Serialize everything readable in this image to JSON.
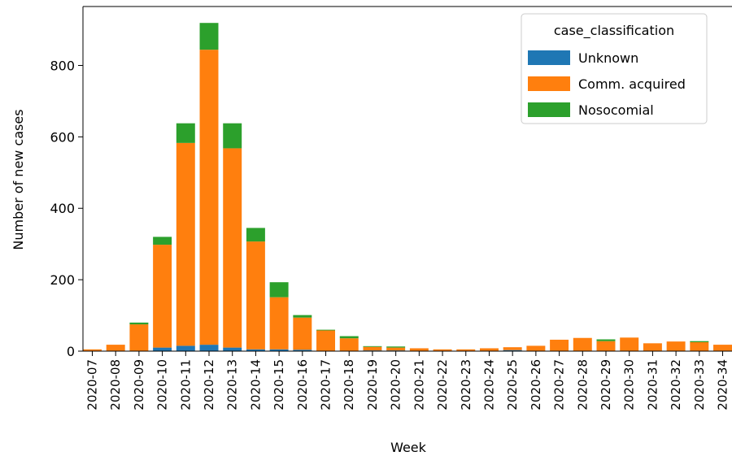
{
  "chart_data": {
    "type": "bar",
    "stacked": true,
    "xlabel": "Week",
    "ylabel": "Number of new cases",
    "ylim": [
      0,
      965
    ],
    "yticks": [
      0,
      200,
      400,
      600,
      800
    ],
    "legend": {
      "title": "case_classification",
      "placement": "top-right"
    },
    "categories": [
      "2020-07",
      "2020-08",
      "2020-09",
      "2020-10",
      "2020-11",
      "2020-12",
      "2020-13",
      "2020-14",
      "2020-15",
      "2020-16",
      "2020-17",
      "2020-18",
      "2020-19",
      "2020-20",
      "2020-21",
      "2020-22",
      "2020-23",
      "2020-24",
      "2020-25",
      "2020-26",
      "2020-27",
      "2020-28",
      "2020-29",
      "2020-30",
      "2020-31",
      "2020-32",
      "2020-33",
      "2020-34"
    ],
    "series": [
      {
        "name": "Unknown",
        "color": "#1f77b4",
        "values": [
          0,
          0,
          0,
          10,
          15,
          18,
          10,
          5,
          5,
          4,
          0,
          0,
          2,
          2,
          0,
          0,
          0,
          0,
          3,
          0,
          0,
          0,
          0,
          0,
          0,
          0,
          0,
          0
        ]
      },
      {
        "name": "Comm. acquired",
        "color": "#ff7f0e",
        "values": [
          5,
          18,
          75,
          288,
          568,
          826,
          558,
          302,
          146,
          90,
          58,
          36,
          10,
          8,
          8,
          5,
          5,
          8,
          8,
          15,
          32,
          37,
          28,
          38,
          22,
          27,
          25,
          18
        ]
      },
      {
        "name": "Nosocomial",
        "color": "#2ca02c",
        "values": [
          0,
          0,
          5,
          22,
          55,
          75,
          70,
          38,
          42,
          7,
          2,
          6,
          2,
          3,
          0,
          0,
          0,
          0,
          0,
          0,
          0,
          0,
          5,
          0,
          0,
          0,
          3,
          0
        ]
      }
    ]
  }
}
